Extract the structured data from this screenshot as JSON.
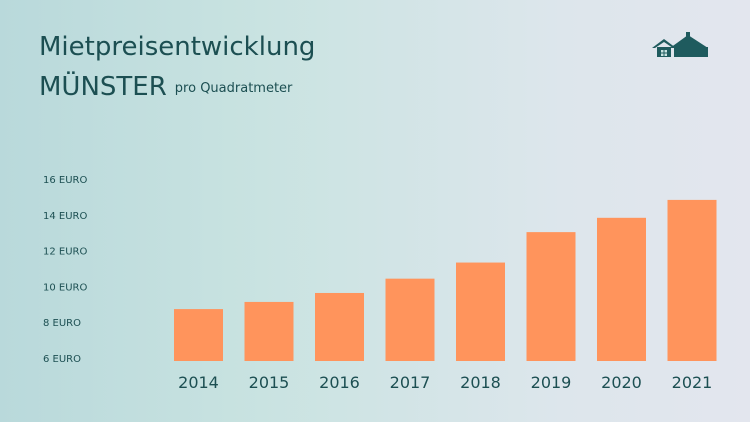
{
  "header": {
    "title": "Mietpreisentwicklung",
    "city": "MÜNSTER",
    "unit_note": "pro Quadratmeter",
    "logo_icon": "house-icon",
    "logo_color": "#1f5b5e"
  },
  "chart_data": {
    "type": "bar",
    "title": "Mietpreisentwicklung MÜNSTER pro Quadratmeter",
    "categories": [
      "2014",
      "2015",
      "2016",
      "2017",
      "2018",
      "2019",
      "2020",
      "2021"
    ],
    "values": [
      8.9,
      9.3,
      9.8,
      10.6,
      11.5,
      13.2,
      14.0,
      15.0
    ],
    "y_ticks": [
      {
        "value": 6,
        "label": "6 EURO"
      },
      {
        "value": 8,
        "label": "8 EURO"
      },
      {
        "value": 10,
        "label": "10 EURO"
      },
      {
        "value": 12,
        "label": "12 EURO"
      },
      {
        "value": 14,
        "label": "14 EURO"
      },
      {
        "value": 16,
        "label": "16 EURO"
      }
    ],
    "ylim": [
      6,
      16
    ],
    "bar_color": "#ff945c",
    "grid": false,
    "legend": "none"
  }
}
